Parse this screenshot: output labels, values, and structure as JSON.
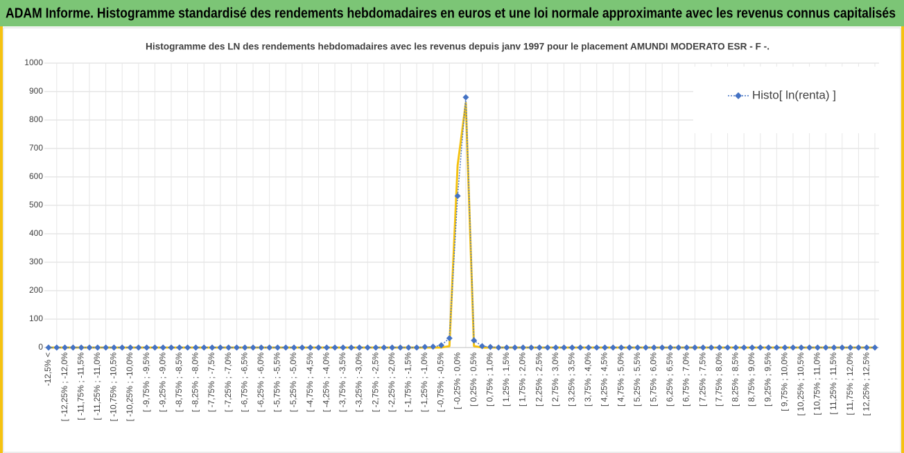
{
  "chart_data": {
    "type": "line",
    "banner": "ADAM Informe. Histogramme standardisé des rendements hebdomadaires en euros et une loi normale approximante avec les revenus connus capitalisés",
    "title": "Histogramme des LN des rendements hebdomadaires avec les revenus depuis janv 1997 pour le placement AMUNDI MODERATO ESR - F -.",
    "categories": [
      "-12,5% <",
      null,
      "[ -12,25% ; -12,0%",
      null,
      "[ -11,75% ; -11,5%",
      null,
      "[ -11,25% ; -11,0%",
      null,
      "[ -10,75% ; -10,5%",
      null,
      "[ -10,25% ; -10,0%",
      null,
      "[ -9,75% ; -9,5%",
      null,
      "[ -9,25% ; -9,0%",
      null,
      "[ -8,75% ; -8,5%",
      null,
      "[ -8,25% ; -8,0%",
      null,
      "[ -7,75% ; -7,5%",
      null,
      "[ -7,25% ; -7,0%",
      null,
      "[ -6,75% ; -6,5%",
      null,
      "[ -6,25% ; -6,0%",
      null,
      "[ -5,75% ; -5,5%",
      null,
      "[ -5,25% ; -5,0%",
      null,
      "[ -4,75% ; -4,5%",
      null,
      "[ -4,25% ; -4,0%",
      null,
      "[ -3,75% ; -3,5%",
      null,
      "[ -3,25% ; -3,0%",
      null,
      "[ -2,75% ; -2,5%",
      null,
      "[ -2,25% ; -2,0%",
      null,
      "[ -1,75% ; -1,5%",
      null,
      "[ -1,25% ; -1,0%",
      null,
      "[ -0,75% ; -0,5%",
      null,
      "[ -0,25% ; 0,0%",
      null,
      "[ 0,25% ; 0,5%",
      null,
      "[ 0,75% ; 1,0%",
      null,
      "[ 1,25% ; 1,5%",
      null,
      "[ 1,75% ; 2,0%",
      null,
      "[ 2,25% ; 2,5%",
      null,
      "[ 2,75% ; 3,0%",
      null,
      "[ 3,25% ; 3,5%",
      null,
      "[ 3,75% ; 4,0%",
      null,
      "[ 4,25% ; 4,5%",
      null,
      "[ 4,75% ; 5,0%",
      null,
      "[ 5,25% ; 5,5%",
      null,
      "[ 5,75% ; 6,0%",
      null,
      "[ 6,25% ; 6,5%",
      null,
      "[ 6,75% ; 7,0%",
      null,
      "[ 7,25% ; 7,5%",
      null,
      "[ 7,75% ; 8,0%",
      null,
      "[ 8,25% ; 8,5%",
      null,
      "[ 8,75% ; 9,0%",
      null,
      "[ 9,25% ; 9,5%",
      null,
      "[ 9,75% ; 10,0%",
      null,
      "[ 10,25% ; 10,5%",
      null,
      "[ 10,75% ; 11,0%",
      null,
      "[ 11,25% ; 11,5%",
      null,
      "[ 11,75% ; 12,0%",
      null,
      "[ 12,25% ; 12,5%",
      null
    ],
    "series": [
      {
        "name": "Histo[ ln(renta) ]",
        "color": "#4472c4",
        "line": "dotted",
        "marker": "diamond",
        "values": [
          0,
          0,
          0,
          0,
          0,
          0,
          0,
          0,
          0,
          0,
          0,
          0,
          0,
          0,
          0,
          0,
          0,
          0,
          0,
          0,
          0,
          0,
          0,
          0,
          0,
          0,
          0,
          0,
          0,
          0,
          0,
          0,
          0,
          0,
          0,
          0,
          0,
          0,
          0,
          0,
          0,
          0,
          0,
          0,
          0,
          0,
          2,
          3,
          8,
          33,
          533,
          880,
          25,
          5,
          2,
          0,
          0,
          0,
          0,
          0,
          0,
          0,
          0,
          0,
          0,
          0,
          0,
          0,
          0,
          0,
          0,
          0,
          0,
          0,
          0,
          0,
          0,
          0,
          0,
          0,
          0,
          0,
          0,
          0,
          0,
          0,
          0,
          0,
          0,
          0,
          0,
          0,
          0,
          0,
          0,
          0,
          0,
          0,
          0,
          0,
          0,
          0
        ]
      },
      {
        "color": "#f5c211",
        "line": "solid",
        "marker": "none",
        "values": [
          0,
          0,
          0,
          0,
          0,
          0,
          0,
          0,
          0,
          0,
          0,
          0,
          0,
          0,
          0,
          0,
          0,
          0,
          0,
          0,
          0,
          0,
          0,
          0,
          0,
          0,
          0,
          0,
          0,
          0,
          0,
          0,
          0,
          0,
          0,
          0,
          0,
          0,
          0,
          0,
          0,
          0,
          0,
          0,
          0,
          0,
          0,
          0,
          0,
          5,
          640,
          860,
          5,
          0,
          0,
          0,
          0,
          0,
          0,
          0,
          0,
          0,
          0,
          0,
          0,
          0,
          0,
          0,
          0,
          0,
          0,
          0,
          0,
          0,
          0,
          0,
          0,
          0,
          0,
          0,
          0,
          0,
          0,
          0,
          0,
          0,
          0,
          0,
          0,
          0,
          0,
          0,
          0,
          0,
          0,
          0,
          0,
          0,
          0,
          0,
          0,
          0
        ]
      }
    ],
    "ylim": [
      0,
      1000
    ],
    "yticks": [
      0,
      100,
      200,
      300,
      400,
      500,
      600,
      700,
      800,
      900,
      1000
    ],
    "grid": true,
    "legend": "top-right"
  }
}
